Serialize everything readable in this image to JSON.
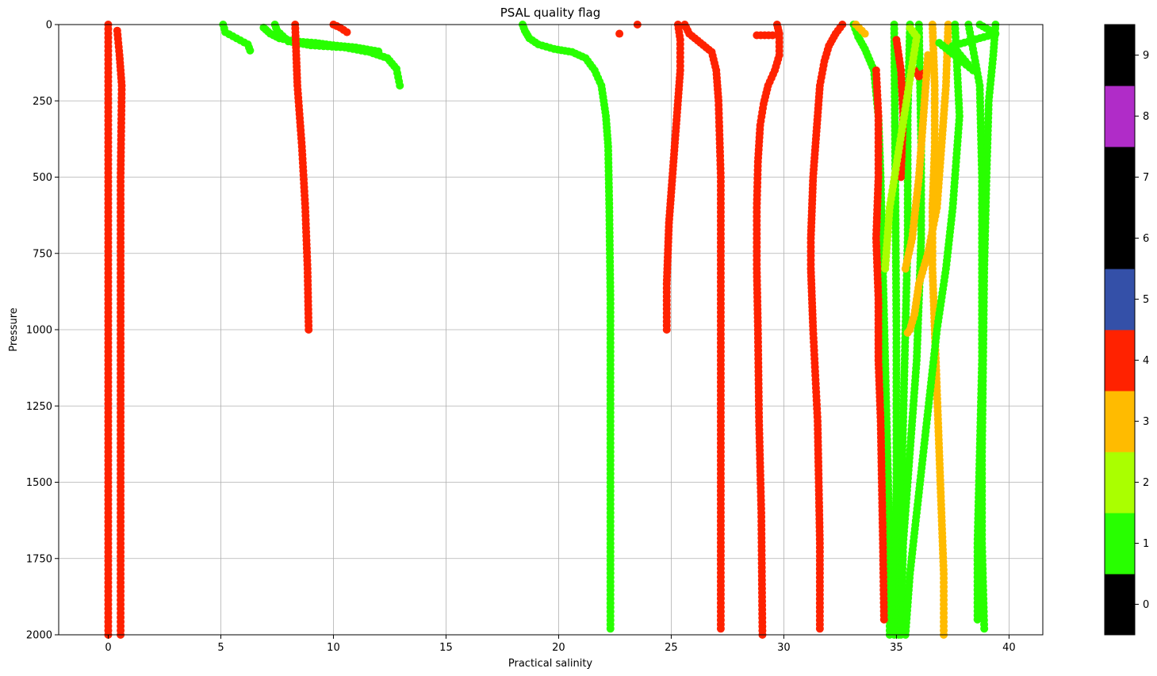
{
  "chart_data": {
    "type": "scatter",
    "title": "PSAL quality flag",
    "xlabel": "Practical salinity",
    "ylabel": "Pressure",
    "xlim": [
      -2.2,
      41.5
    ],
    "ylim": [
      2000,
      0
    ],
    "y_inverted": true,
    "xticks": [
      "0",
      "5",
      "10",
      "15",
      "20",
      "25",
      "30",
      "35",
      "40"
    ],
    "yticks": [
      "0",
      "250",
      "500",
      "750",
      "1000",
      "1250",
      "1500",
      "1750",
      "2000"
    ],
    "grid": true,
    "colorbar": {
      "ticks": [
        "0",
        "1",
        "2",
        "3",
        "4",
        "5",
        "6",
        "7",
        "8",
        "9"
      ],
      "colors": [
        "#000000",
        "#28ff00",
        "#aaff00",
        "#ffbb00",
        "#ff2200",
        "#3450a8",
        "#000000",
        "#000000",
        "#b02cc8",
        "#000000"
      ]
    },
    "series": [
      {
        "flag": 4,
        "color": "#ff2200",
        "points": [
          [
            0,
            0
          ],
          [
            0,
            500
          ],
          [
            0,
            1000
          ],
          [
            0,
            1500
          ],
          [
            0,
            2000
          ]
        ]
      },
      {
        "flag": 4,
        "color": "#ff2200",
        "points": [
          [
            0.4,
            20
          ],
          [
            0.5,
            100
          ],
          [
            0.6,
            200
          ],
          [
            0.55,
            500
          ],
          [
            0.55,
            1000
          ],
          [
            0.55,
            1500
          ],
          [
            0.55,
            2000
          ]
        ]
      },
      {
        "flag": 1,
        "color": "#28ff00",
        "points": [
          [
            5.1,
            0
          ],
          [
            5.2,
            25
          ],
          [
            5.7,
            45
          ],
          [
            6.2,
            65
          ],
          [
            6.3,
            85
          ]
        ]
      },
      {
        "flag": 1,
        "color": "#28ff00",
        "points": [
          [
            6.9,
            10
          ],
          [
            7.2,
            30
          ],
          [
            7.6,
            45
          ],
          [
            8.3,
            55
          ],
          [
            9.2,
            60
          ],
          [
            10,
            68
          ],
          [
            11,
            75
          ],
          [
            12,
            88
          ]
        ]
      },
      {
        "flag": 1,
        "color": "#28ff00",
        "points": [
          [
            7.4,
            0
          ],
          [
            7.5,
            20
          ],
          [
            8,
            55
          ],
          [
            9,
            68
          ],
          [
            10.5,
            75
          ],
          [
            11.6,
            90
          ],
          [
            12.4,
            110
          ],
          [
            12.8,
            145
          ],
          [
            12.95,
            200
          ]
        ]
      },
      {
        "flag": 4,
        "color": "#ff2200",
        "points": [
          [
            8.3,
            0
          ],
          [
            8.35,
            100
          ],
          [
            8.4,
            200
          ],
          [
            8.6,
            400
          ],
          [
            8.75,
            600
          ],
          [
            8.85,
            800
          ],
          [
            8.9,
            1000
          ]
        ]
      },
      {
        "flag": 4,
        "color": "#ff2200",
        "points": [
          [
            10,
            0
          ],
          [
            10.3,
            10
          ],
          [
            10.6,
            25
          ]
        ]
      },
      {
        "flag": 1,
        "color": "#28ff00",
        "points": [
          [
            18.4,
            0
          ],
          [
            18.5,
            20
          ],
          [
            18.7,
            45
          ],
          [
            19.1,
            65
          ],
          [
            19.8,
            80
          ],
          [
            20.6,
            90
          ],
          [
            21.2,
            110
          ],
          [
            21.6,
            150
          ],
          [
            21.9,
            200
          ],
          [
            22.1,
            300
          ],
          [
            22.2,
            400
          ],
          [
            22.25,
            600
          ],
          [
            22.3,
            900
          ],
          [
            22.3,
            1300
          ],
          [
            22.3,
            1700
          ],
          [
            22.3,
            1980
          ]
        ]
      },
      {
        "flag": 4,
        "color": "#ff2200",
        "points": [
          [
            22.7,
            30
          ]
        ]
      },
      {
        "flag": 4,
        "color": "#ff2200",
        "points": [
          [
            23.5,
            0
          ]
        ]
      },
      {
        "flag": 4,
        "color": "#ff2200",
        "points": [
          [
            25.3,
            0
          ],
          [
            25.4,
            50
          ],
          [
            25.4,
            150
          ],
          [
            25.3,
            250
          ],
          [
            25.2,
            350
          ],
          [
            25.1,
            450
          ],
          [
            25.0,
            550
          ],
          [
            24.9,
            650
          ],
          [
            24.85,
            750
          ],
          [
            24.8,
            850
          ],
          [
            24.8,
            1000
          ]
        ]
      },
      {
        "flag": 4,
        "color": "#ff2200",
        "points": [
          [
            25.6,
            0
          ],
          [
            25.8,
            30
          ],
          [
            26.3,
            60
          ],
          [
            26.8,
            90
          ],
          [
            27.0,
            150
          ],
          [
            27.1,
            250
          ],
          [
            27.2,
            500
          ],
          [
            27.2,
            1000
          ],
          [
            27.2,
            1500
          ],
          [
            27.2,
            1980
          ]
        ]
      },
      {
        "flag": 4,
        "color": "#ff2200",
        "points": [
          [
            29.7,
            0
          ],
          [
            29.8,
            30
          ],
          [
            29.8,
            100
          ],
          [
            29.6,
            150
          ],
          [
            29.3,
            200
          ],
          [
            29.1,
            260
          ],
          [
            28.95,
            330
          ],
          [
            28.85,
            450
          ],
          [
            28.8,
            600
          ],
          [
            28.8,
            800
          ],
          [
            28.85,
            1000
          ],
          [
            28.9,
            1300
          ],
          [
            29.0,
            1600
          ],
          [
            29.05,
            2000
          ]
        ]
      },
      {
        "flag": 4,
        "color": "#ff2200",
        "points": [
          [
            28.8,
            35
          ],
          [
            29.5,
            35
          ]
        ]
      },
      {
        "flag": 4,
        "color": "#ff2200",
        "points": [
          [
            32.6,
            0
          ],
          [
            32.3,
            30
          ],
          [
            32.0,
            70
          ],
          [
            31.8,
            120
          ],
          [
            31.6,
            200
          ],
          [
            31.5,
            300
          ],
          [
            31.4,
            400
          ],
          [
            31.3,
            500
          ],
          [
            31.25,
            600
          ],
          [
            31.2,
            700
          ],
          [
            31.2,
            800
          ],
          [
            31.25,
            900
          ],
          [
            31.3,
            1000
          ],
          [
            31.4,
            1150
          ],
          [
            31.5,
            1300
          ],
          [
            31.55,
            1500
          ],
          [
            31.6,
            1700
          ],
          [
            31.6,
            1980
          ]
        ]
      },
      {
        "flag": 1,
        "color": "#28ff00",
        "points": [
          [
            33.1,
            0
          ],
          [
            33.3,
            40
          ],
          [
            33.6,
            80
          ],
          [
            34.0,
            150
          ],
          [
            34.2,
            300
          ],
          [
            34.3,
            500
          ],
          [
            34.4,
            800
          ],
          [
            34.5,
            1100
          ],
          [
            34.6,
            1400
          ],
          [
            34.7,
            1700
          ],
          [
            34.7,
            2000
          ]
        ]
      },
      {
        "flag": 4,
        "color": "#ff2200",
        "points": [
          [
            34.1,
            150
          ],
          [
            34.2,
            300
          ],
          [
            34.2,
            500
          ],
          [
            34.1,
            700
          ],
          [
            34.2,
            900
          ],
          [
            34.2,
            1100
          ],
          [
            34.3,
            1300
          ],
          [
            34.35,
            1500
          ],
          [
            34.4,
            1700
          ],
          [
            34.45,
            1950
          ]
        ]
      },
      {
        "flag": 1,
        "color": "#28ff00",
        "points": [
          [
            34.9,
            0
          ],
          [
            34.95,
            500
          ],
          [
            35.0,
            1000
          ],
          [
            35.0,
            1500
          ],
          [
            34.9,
            2000
          ]
        ]
      },
      {
        "flag": 1,
        "color": "#28ff00",
        "points": [
          [
            35.6,
            0
          ],
          [
            35.5,
            300
          ],
          [
            35.5,
            700
          ],
          [
            35.4,
            1000
          ],
          [
            35.3,
            1300
          ],
          [
            35.2,
            1600
          ],
          [
            35.1,
            2000
          ]
        ]
      },
      {
        "flag": 1,
        "color": "#28ff00",
        "points": [
          [
            36.0,
            0
          ],
          [
            36.1,
            400
          ],
          [
            36.1,
            700
          ],
          [
            36.0,
            900
          ],
          [
            35.9,
            1100
          ],
          [
            35.7,
            1300
          ],
          [
            35.5,
            1500
          ],
          [
            35.3,
            1700
          ],
          [
            35.2,
            2000
          ]
        ]
      },
      {
        "flag": 4,
        "color": "#ff2200",
        "points": [
          [
            35.0,
            50
          ],
          [
            35.2,
            150
          ],
          [
            35.3,
            300
          ],
          [
            35.2,
            500
          ]
        ]
      },
      {
        "flag": 4,
        "color": "#ff2200",
        "points": [
          [
            35.8,
            150
          ],
          [
            36.0,
            170
          ],
          [
            36.2,
            160
          ]
        ]
      },
      {
        "flag": 3,
        "color": "#ffbb00",
        "points": [
          [
            36.6,
            0
          ],
          [
            36.7,
            200
          ],
          [
            36.7,
            400
          ],
          [
            36.6,
            600
          ],
          [
            36.6,
            800
          ],
          [
            36.7,
            1000
          ],
          [
            36.8,
            1200
          ],
          [
            36.9,
            1400
          ],
          [
            37.0,
            1600
          ],
          [
            37.1,
            1800
          ],
          [
            37.1,
            2000
          ]
        ]
      },
      {
        "flag": 3,
        "color": "#ffbb00",
        "points": [
          [
            37.3,
            0
          ],
          [
            37.2,
            200
          ],
          [
            37.0,
            400
          ],
          [
            36.8,
            600
          ],
          [
            36.4,
            750
          ],
          [
            36.0,
            850
          ],
          [
            35.8,
            950
          ],
          [
            35.6,
            1000
          ],
          [
            35.5,
            1010
          ]
        ]
      },
      {
        "flag": 3,
        "color": "#ffbb00",
        "points": [
          [
            36.4,
            100
          ],
          [
            36.2,
            300
          ],
          [
            36.0,
            500
          ],
          [
            35.7,
            700
          ],
          [
            35.4,
            800
          ]
        ]
      },
      {
        "flag": 3,
        "color": "#ffbb00",
        "points": [
          [
            33.2,
            0
          ],
          [
            33.6,
            30
          ]
        ]
      },
      {
        "flag": 1,
        "color": "#28ff00",
        "points": [
          [
            37.6,
            0
          ],
          [
            37.8,
            300
          ],
          [
            37.5,
            600
          ],
          [
            37.2,
            800
          ],
          [
            36.8,
            1000
          ],
          [
            36.5,
            1200
          ],
          [
            36.2,
            1400
          ],
          [
            35.9,
            1600
          ],
          [
            35.6,
            1800
          ],
          [
            35.4,
            2000
          ]
        ]
      },
      {
        "flag": 1,
        "color": "#28ff00",
        "points": [
          [
            38.2,
            0
          ],
          [
            38.7,
            200
          ],
          [
            38.8,
            500
          ],
          [
            38.8,
            800
          ],
          [
            38.8,
            1100
          ],
          [
            38.7,
            1400
          ],
          [
            38.6,
            1700
          ],
          [
            38.6,
            1950
          ]
        ]
      },
      {
        "flag": 1,
        "color": "#28ff00",
        "points": [
          [
            39.4,
            0
          ],
          [
            39.3,
            100
          ],
          [
            39.1,
            250
          ],
          [
            39.0,
            500
          ],
          [
            38.9,
            800
          ],
          [
            38.85,
            1100
          ],
          [
            38.8,
            1400
          ],
          [
            38.8,
            1700
          ],
          [
            38.9,
            1980
          ]
        ]
      },
      {
        "flag": 1,
        "color": "#28ff00",
        "points": [
          [
            38.7,
            0
          ],
          [
            39.4,
            30
          ],
          [
            37.5,
            70
          ],
          [
            38.4,
            150
          ],
          [
            36.9,
            60
          ],
          [
            37.8,
            110
          ]
        ]
      },
      {
        "flag": 2,
        "color": "#aaff00",
        "points": [
          [
            35.6,
            10
          ],
          [
            35.9,
            40
          ],
          [
            34.7,
            600
          ],
          [
            34.5,
            800
          ]
        ]
      }
    ]
  }
}
